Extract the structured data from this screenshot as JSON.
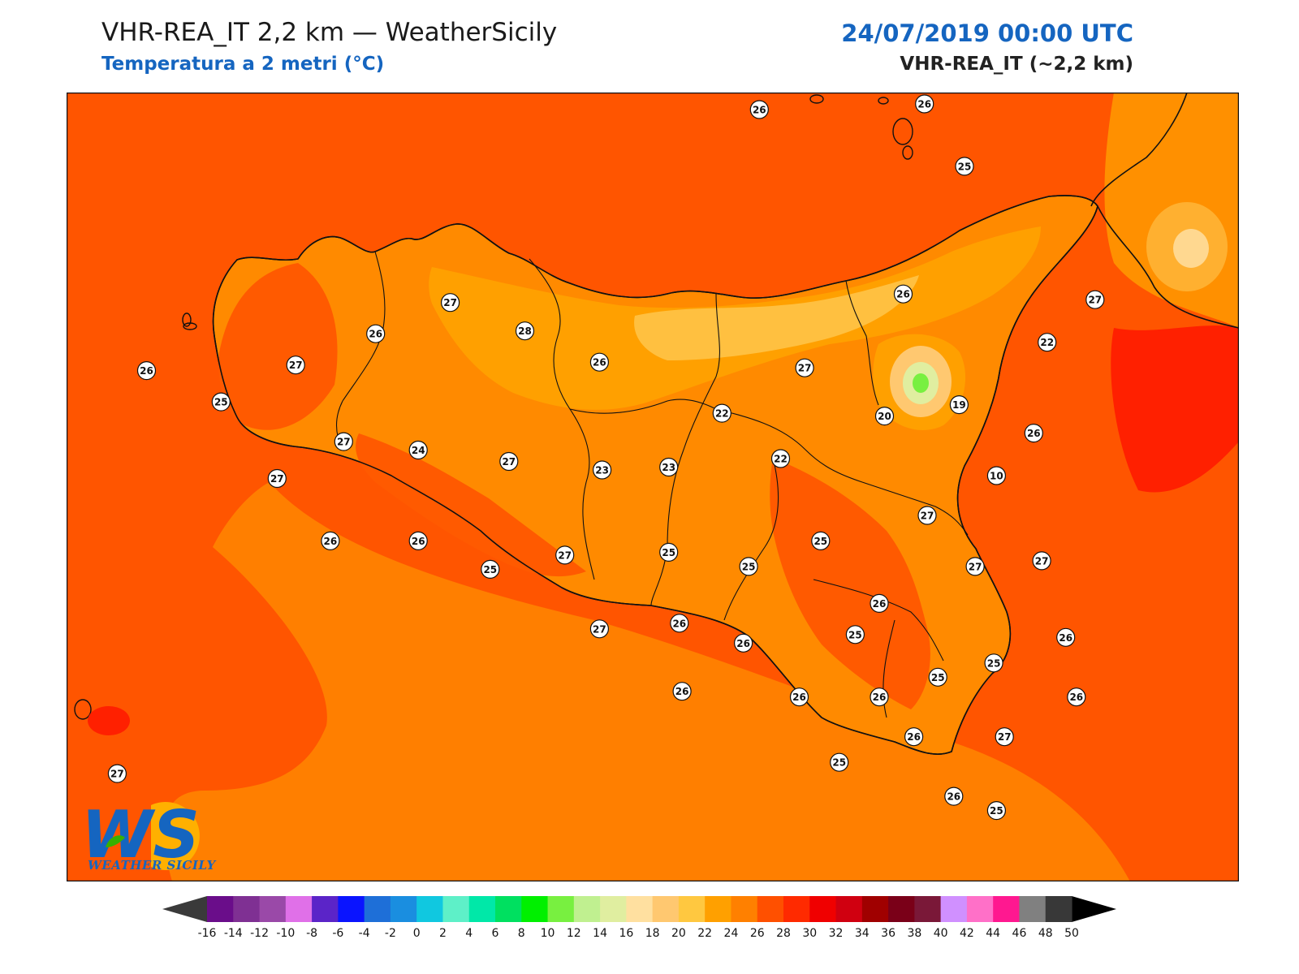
{
  "header": {
    "title": "VHR-REA_IT 2,2 km — WeatherSicily",
    "subtitle": "Temperatura a 2 metri (°C)",
    "datetime": "24/07/2019 00:00 UTC",
    "model": "VHR-REA_IT (~2,2 km)"
  },
  "logo": {
    "mark": "WS",
    "name": "WEATHER SICILY"
  },
  "colors": {
    "sea": "#ff5500",
    "sea_south": "#ff7f00",
    "land_warm": "#ff8a00",
    "land_mild": "#ffa000",
    "land_cool": "#ffc040",
    "hot": "#ff1a00",
    "coast": "#111111"
  },
  "colorbar": {
    "ticks": [
      "-16",
      "-14",
      "-12",
      "-10",
      "-8",
      "-6",
      "-4",
      "-2",
      "0",
      "2",
      "4",
      "6",
      "8",
      "10",
      "12",
      "14",
      "16",
      "18",
      "20",
      "22",
      "24",
      "26",
      "28",
      "30",
      "32",
      "34",
      "36",
      "38",
      "40",
      "42",
      "44",
      "46",
      "48",
      "50"
    ],
    "colors": [
      "#440044",
      "#6a0d8a",
      "#7f3093",
      "#9a49a8",
      "#e070e8",
      "#5b24c8",
      "#0a14ff",
      "#1e6fd8",
      "#1a8ee0",
      "#10c8e0",
      "#5ef0c8",
      "#00e8a8",
      "#00e060",
      "#00f000",
      "#78f040",
      "#c0f090",
      "#e0eea0",
      "#ffe0a0",
      "#ffc870",
      "#ffc840",
      "#ffa000",
      "#ff8000",
      "#ff5000",
      "#ff2a00",
      "#f00000",
      "#d00010",
      "#a00000",
      "#7a0018",
      "#7a1838",
      "#d090ff",
      "#ff70c8",
      "#ff1890",
      "#808080",
      "#383838"
    ],
    "under_color": "#3a3a3a",
    "over_color": "#000000"
  },
  "stations": [
    {
      "v": "26",
      "lon": 14.35,
      "lat": 39.12
    },
    {
      "v": "26",
      "lon": 14.97,
      "lat": 39.14
    },
    {
      "v": "25",
      "lon": 15.12,
      "lat": 38.92
    },
    {
      "v": "26",
      "lon": 14.89,
      "lat": 38.47
    },
    {
      "v": "27",
      "lon": 15.61,
      "lat": 38.45
    },
    {
      "v": "22",
      "lon": 15.43,
      "lat": 38.3
    },
    {
      "v": "26",
      "lon": 12.05,
      "lat": 38.2
    },
    {
      "v": "25",
      "lon": 12.33,
      "lat": 38.09
    },
    {
      "v": "27",
      "lon": 12.61,
      "lat": 38.22
    },
    {
      "v": "26",
      "lon": 12.91,
      "lat": 38.33
    },
    {
      "v": "27",
      "lon": 13.19,
      "lat": 38.44
    },
    {
      "v": "28",
      "lon": 13.47,
      "lat": 38.34
    },
    {
      "v": "26",
      "lon": 13.75,
      "lat": 38.23
    },
    {
      "v": "27",
      "lon": 14.52,
      "lat": 38.21
    },
    {
      "v": "22",
      "lon": 14.21,
      "lat": 38.05
    },
    {
      "v": "20",
      "lon": 14.82,
      "lat": 38.04
    },
    {
      "v": "19",
      "lon": 15.1,
      "lat": 38.08
    },
    {
      "v": "27",
      "lon": 12.79,
      "lat": 37.95
    },
    {
      "v": "24",
      "lon": 13.07,
      "lat": 37.92
    },
    {
      "v": "27",
      "lon": 13.41,
      "lat": 37.88
    },
    {
      "v": "23",
      "lon": 13.76,
      "lat": 37.85
    },
    {
      "v": "23",
      "lon": 14.01,
      "lat": 37.86
    },
    {
      "v": "22",
      "lon": 14.43,
      "lat": 37.89
    },
    {
      "v": "26",
      "lon": 15.38,
      "lat": 37.98
    },
    {
      "v": "10",
      "lon": 15.24,
      "lat": 37.83
    },
    {
      "v": "27",
      "lon": 12.54,
      "lat": 37.82
    },
    {
      "v": "27",
      "lon": 14.98,
      "lat": 37.69
    },
    {
      "v": "26",
      "lon": 12.74,
      "lat": 37.6
    },
    {
      "v": "26",
      "lon": 13.07,
      "lat": 37.6
    },
    {
      "v": "25",
      "lon": 13.34,
      "lat": 37.5
    },
    {
      "v": "27",
      "lon": 13.62,
      "lat": 37.55
    },
    {
      "v": "25",
      "lon": 14.01,
      "lat": 37.56
    },
    {
      "v": "25",
      "lon": 14.31,
      "lat": 37.51
    },
    {
      "v": "25",
      "lon": 14.58,
      "lat": 37.6
    },
    {
      "v": "27",
      "lon": 15.16,
      "lat": 37.51
    },
    {
      "v": "27",
      "lon": 15.41,
      "lat": 37.53
    },
    {
      "v": "26",
      "lon": 14.8,
      "lat": 37.38
    },
    {
      "v": "27",
      "lon": 13.75,
      "lat": 37.29
    },
    {
      "v": "26",
      "lon": 14.05,
      "lat": 37.31
    },
    {
      "v": "26",
      "lon": 14.29,
      "lat": 37.24
    },
    {
      "v": "25",
      "lon": 14.71,
      "lat": 37.27
    },
    {
      "v": "26",
      "lon": 15.5,
      "lat": 37.26
    },
    {
      "v": "25",
      "lon": 15.23,
      "lat": 37.17
    },
    {
      "v": "25",
      "lon": 15.02,
      "lat": 37.12
    },
    {
      "v": "26",
      "lon": 14.06,
      "lat": 37.07
    },
    {
      "v": "26",
      "lon": 14.5,
      "lat": 37.05
    },
    {
      "v": "26",
      "lon": 14.8,
      "lat": 37.05
    },
    {
      "v": "26",
      "lon": 15.54,
      "lat": 37.05
    },
    {
      "v": "26",
      "lon": 14.93,
      "lat": 36.91
    },
    {
      "v": "27",
      "lon": 15.27,
      "lat": 36.91
    },
    {
      "v": "25",
      "lon": 14.65,
      "lat": 36.82
    },
    {
      "v": "27",
      "lon": 11.94,
      "lat": 36.78
    },
    {
      "v": "26",
      "lon": 15.08,
      "lat": 36.7
    },
    {
      "v": "25",
      "lon": 15.24,
      "lat": 36.65
    }
  ]
}
